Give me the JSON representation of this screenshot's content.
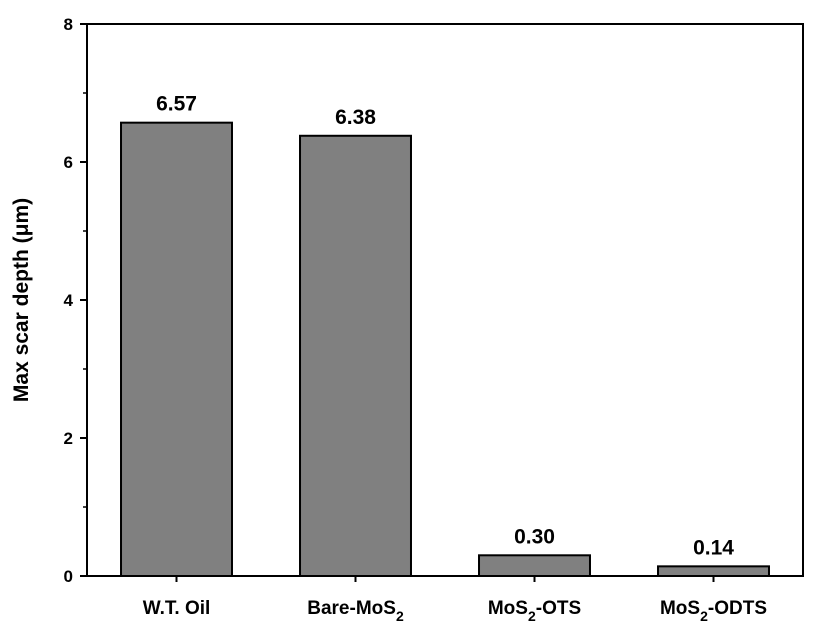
{
  "chart_data": {
    "type": "bar",
    "title": "",
    "xlabel": "",
    "ylabel": "Max scar depth (μm)",
    "ylim": [
      0,
      8
    ],
    "yticks": [
      "0",
      "2",
      "4",
      "6",
      "8"
    ],
    "categories": [
      {
        "base": "W.T. Oil",
        "sub": "",
        "suffix": ""
      },
      {
        "base": "Bare-MoS",
        "sub": "2",
        "suffix": ""
      },
      {
        "base": "MoS",
        "sub": "2",
        "suffix": "-OTS"
      },
      {
        "base": "MoS",
        "sub": "2",
        "suffix": "-ODTS"
      }
    ],
    "values": [
      6.57,
      6.38,
      0.3,
      0.14
    ],
    "value_labels": [
      "6.57",
      "6.38",
      "0.30",
      "0.14"
    ],
    "grid": false,
    "legend": "none",
    "bar_color": "#808080",
    "bar_edge_color": "#000000"
  }
}
